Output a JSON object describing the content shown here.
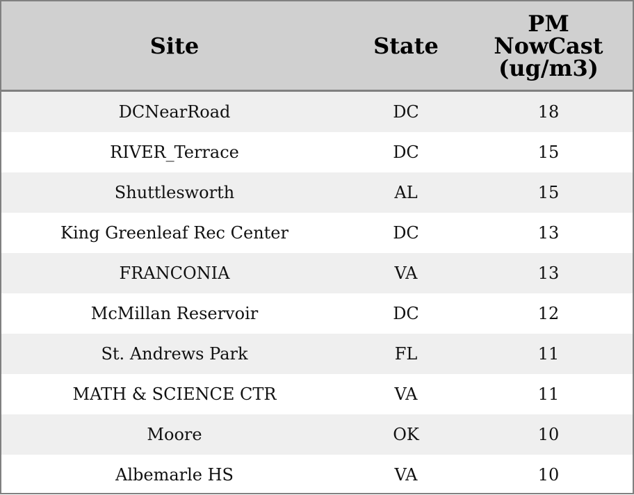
{
  "chart_data": {
    "type": "table",
    "columns": [
      "Site",
      "State",
      "PM NowCast (ug/m3)"
    ],
    "header_lines": [
      [
        "Site"
      ],
      [
        "State"
      ],
      [
        "PM",
        "NowCast",
        "(ug/m3)"
      ]
    ],
    "rows": [
      [
        "DCNearRoad",
        "DC",
        "18"
      ],
      [
        "RIVER_Terrace",
        "DC",
        "15"
      ],
      [
        "Shuttlesworth",
        "AL",
        "15"
      ],
      [
        "King Greenleaf Rec Center",
        "DC",
        "13"
      ],
      [
        "FRANCONIA",
        "VA",
        "13"
      ],
      [
        "McMillan Reservoir",
        "DC",
        "12"
      ],
      [
        "St. Andrews Park",
        "FL",
        "11"
      ],
      [
        "MATH & SCIENCE CTR",
        "VA",
        "11"
      ],
      [
        "Moore",
        "OK",
        "10"
      ],
      [
        "Albemarle HS",
        "VA",
        "10"
      ]
    ],
    "colors": {
      "header_bg": "#d0d0d0",
      "stripe_bg": "#efefef",
      "border": "#808080"
    }
  }
}
